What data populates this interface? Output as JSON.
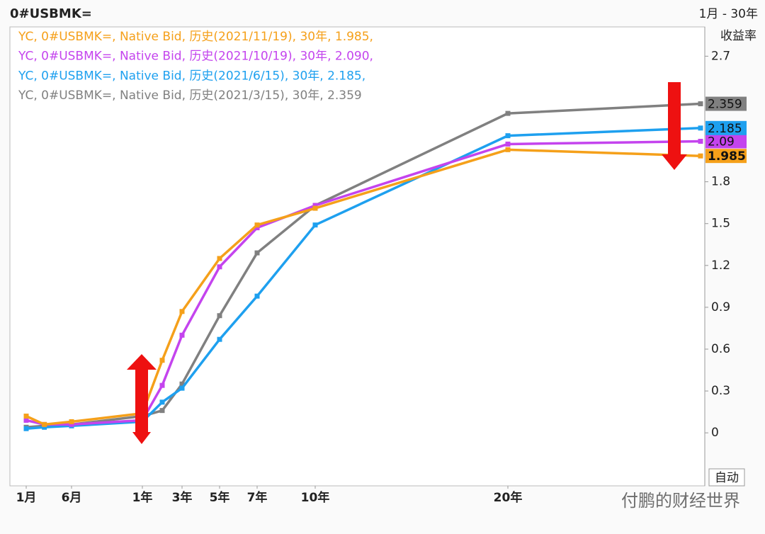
{
  "chart_data": {
    "type": "line",
    "title": "0#USBMK=",
    "range_label": "1月 - 30年",
    "y_axis_label": "收益率",
    "scale_button": "自动",
    "watermark": "付鹏的财经世界",
    "x": [
      0.083,
      0.25,
      0.5,
      1,
      2,
      3,
      5,
      7,
      10,
      20,
      30
    ],
    "xticks": [
      {
        "value": 0.083,
        "label": "1月"
      },
      {
        "value": 0.5,
        "label": "6月"
      },
      {
        "value": 1,
        "label": "1年"
      },
      {
        "value": 3,
        "label": "3年"
      },
      {
        "value": 5,
        "label": "5年"
      },
      {
        "value": 7,
        "label": "7年"
      },
      {
        "value": 10,
        "label": "10年"
      },
      {
        "value": 20,
        "label": "20年"
      }
    ],
    "ylim": [
      -0.38,
      2.91
    ],
    "yticks": [
      0,
      0.3,
      0.6,
      0.9,
      1.2,
      1.5,
      1.8,
      2.7
    ],
    "series": [
      {
        "name": "YC, 0#USBMK=, Native Bid, 历史(2021/11/19), 30年, 1.985,",
        "color": "#f5a01a",
        "values": [
          0.12,
          0.06,
          0.08,
          0.14,
          0.52,
          0.87,
          1.25,
          1.49,
          1.61,
          2.03,
          1.985
        ]
      },
      {
        "name": "YC, 0#USBMK=, Native Bid, 历史(2021/10/19), 30年, 2.090,",
        "color": "#c444ee",
        "values": [
          0.09,
          0.06,
          0.06,
          0.09,
          0.34,
          0.7,
          1.19,
          1.47,
          1.63,
          2.07,
          2.09
        ]
      },
      {
        "name": "YC, 0#USBMK=, Native Bid, 历史(2021/6/15), 30年, 2.185,",
        "color": "#1ea0ef",
        "values": [
          0.03,
          0.04,
          0.05,
          0.08,
          0.22,
          0.32,
          0.67,
          0.98,
          1.49,
          2.13,
          2.185
        ]
      },
      {
        "name": "YC, 0#USBMK=, Native Bid, 历史(2021/3/15), 30年, 2.359",
        "color": "#808080",
        "values": [
          0.04,
          0.05,
          0.06,
          0.12,
          0.16,
          0.35,
          0.84,
          1.29,
          1.63,
          2.29,
          2.359
        ]
      }
    ]
  }
}
